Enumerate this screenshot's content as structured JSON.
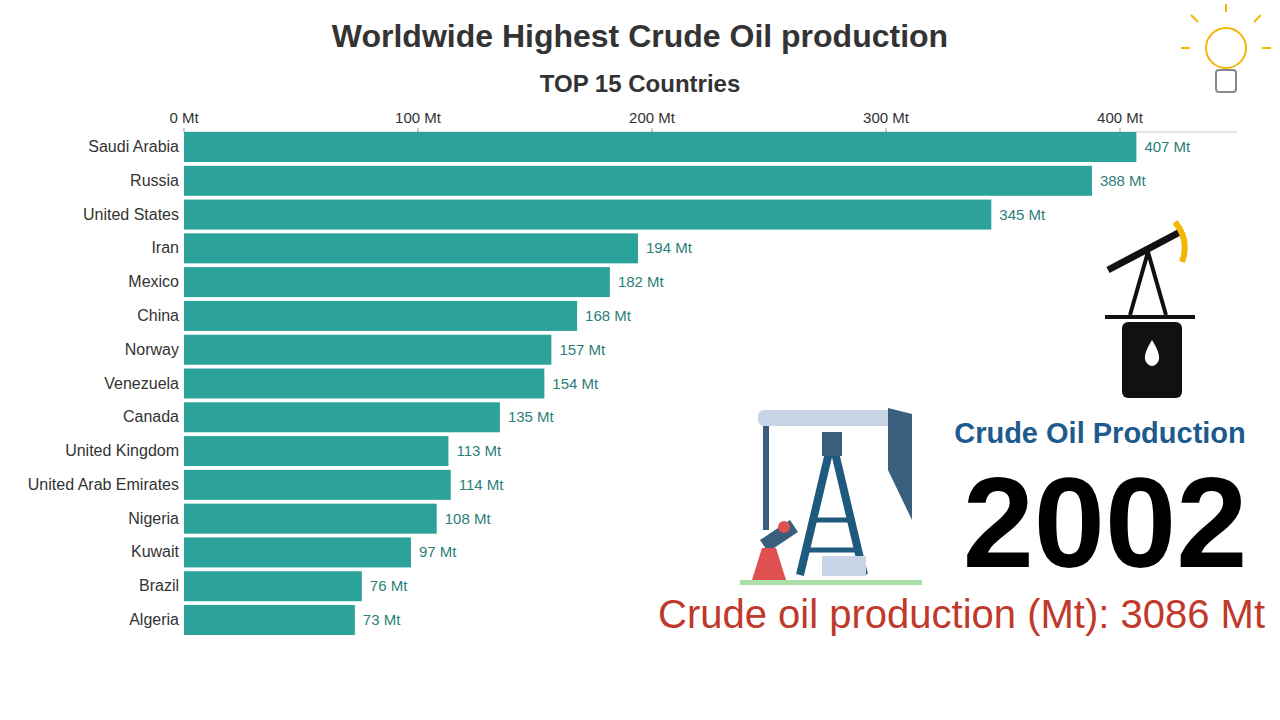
{
  "chart_data": {
    "type": "bar",
    "orientation": "horizontal",
    "title": "Worldwide Highest Crude Oil production",
    "subtitle": "TOP 15 Countries",
    "categories": [
      "Saudi Arabia",
      "Russia",
      "United States",
      "Iran",
      "Mexico",
      "China",
      "Norway",
      "Venezuela",
      "Canada",
      "United Kingdom",
      "United Arab Emirates",
      "Nigeria",
      "Kuwait",
      "Brazil",
      "Algeria"
    ],
    "values": [
      407,
      388,
      345,
      194,
      182,
      168,
      157,
      154,
      135,
      113,
      114,
      108,
      97,
      76,
      73
    ],
    "value_labels": [
      "407 Mt",
      "388 Mt",
      "345 Mt",
      "194 Mt",
      "182 Mt",
      "168 Mt",
      "157 Mt",
      "154 Mt",
      "135 Mt",
      "113 Mt",
      "114 Mt",
      "108 Mt",
      "97 Mt",
      "76 Mt",
      "73 Mt"
    ],
    "data_labels": true,
    "color": "#2ba39a",
    "xlim": [
      0,
      450
    ],
    "xticks": [
      {
        "value": 0,
        "label": "0 Mt"
      },
      {
        "value": 100,
        "label": "100 Mt"
      },
      {
        "value": 200,
        "label": "200 Mt"
      },
      {
        "value": 300,
        "label": "300 Mt"
      },
      {
        "value": 400,
        "label": "400 Mt"
      }
    ],
    "grid": false,
    "year_heading": "Crude Oil Production",
    "year": "2002",
    "total_label": "Crude oil production (Mt): 3086 Mt"
  }
}
